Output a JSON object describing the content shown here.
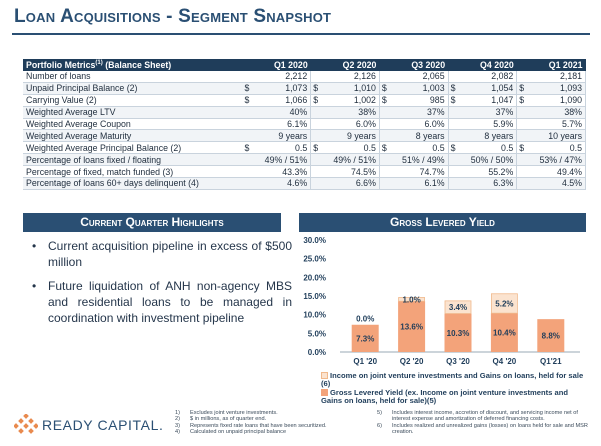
{
  "page": {
    "title": "Loan Acquisitions - Segment Snapshot"
  },
  "table": {
    "header": {
      "label": "Portfolio Metrics",
      "sup": "(1)",
      "suffix": " (Balance Sheet)",
      "quarters": [
        "Q1 2020",
        "Q2 2020",
        "Q3 2020",
        "Q4 2020",
        "Q1 2021"
      ]
    },
    "rows": [
      {
        "label": "Number of loans",
        "cur": [
          "",
          "",
          "",
          "",
          ""
        ],
        "values": [
          "2,212",
          "2,126",
          "2,065",
          "2,082",
          "2,181"
        ]
      },
      {
        "label": "Unpaid Principal Balance (2)",
        "cur": [
          "$",
          "$",
          "$",
          "$",
          "$"
        ],
        "values": [
          "1,073",
          "1,010",
          "1,003",
          "1,054",
          "1,093"
        ]
      },
      {
        "label": "Carrying Value (2)",
        "cur": [
          "$",
          "$",
          "$",
          "$",
          "$"
        ],
        "values": [
          "1,066",
          "1,002",
          "985",
          "1,047",
          "1,090"
        ]
      },
      {
        "label": "Weighted Average LTV",
        "cur": [
          "",
          "",
          "",
          "",
          ""
        ],
        "values": [
          "40%",
          "38%",
          "37%",
          "37%",
          "38%"
        ]
      },
      {
        "label": "Weighted Average Coupon",
        "cur": [
          "",
          "",
          "",
          "",
          ""
        ],
        "values": [
          "6.1%",
          "6.0%",
          "6.0%",
          "5.9%",
          "5.7%"
        ]
      },
      {
        "label": "Weighted Average Maturity",
        "cur": [
          "",
          "",
          "",
          "",
          ""
        ],
        "values": [
          "9 years",
          "9 years",
          "8 years",
          "8 years",
          "10 years"
        ]
      },
      {
        "label": "Weighted Average Principal Balance (2)",
        "cur": [
          "$",
          "$",
          "$",
          "$",
          "$"
        ],
        "values": [
          "0.5",
          "0.5",
          "0.5",
          "0.5",
          "0.5"
        ]
      },
      {
        "label": "Percentage of loans fixed / floating",
        "cur": [
          "",
          "",
          "",
          "",
          ""
        ],
        "values": [
          "49% / 51%",
          "49% / 51%",
          "51% / 49%",
          "50% / 50%",
          "53% / 47%"
        ]
      },
      {
        "label": "Percentage of fixed, match funded (3)",
        "cur": [
          "",
          "",
          "",
          "",
          ""
        ],
        "values": [
          "43.3%",
          "74.5%",
          "74.7%",
          "55.2%",
          "49.4%"
        ]
      },
      {
        "label": "Percentage of loans 60+ days delinquent (4)",
        "cur": [
          "",
          "",
          "",
          "",
          ""
        ],
        "values": [
          "4.6%",
          "6.6%",
          "6.1%",
          "6.3%",
          "4.5%"
        ]
      }
    ]
  },
  "highlights": {
    "heading": "Current Quarter Highlights",
    "bullets": [
      "Current acquisition pipeline in excess of $500 million",
      "Future liquidation of ANH non-agency MBS and residential loans to be managed in coordination with investment pipeline"
    ]
  },
  "yield": {
    "heading": "Gross Levered Yield"
  },
  "chart_data": {
    "type": "bar",
    "stacked": true,
    "categories": [
      "Q1 '20",
      "Q2 '20",
      "Q3 '20",
      "Q4 '20",
      "Q1'21"
    ],
    "series": [
      {
        "name": "Gross Levered Yield (ex. Income on joint venture investments and Gains on loans, held for sale)(5)",
        "values": [
          7.3,
          13.6,
          10.3,
          10.4,
          8.8
        ],
        "color": "#f3a37a"
      },
      {
        "name": "Income on joint venture investments and Gains on loans, held for sale (6)",
        "values": [
          0.0,
          1.0,
          3.4,
          5.2,
          0.0
        ],
        "color": "#fbe3cf"
      }
    ],
    "data_labels": {
      "bottom": [
        "7.3%",
        "13.6%",
        "10.3%",
        "10.4%",
        "8.8%"
      ],
      "top": [
        "0.0%",
        "1.0%",
        "3.4%",
        "5.2%",
        ""
      ]
    },
    "ylim": [
      0,
      30
    ],
    "yticks": [
      "0.0%",
      "5.0%",
      "10.0%",
      "15.0%",
      "20.0%",
      "25.0%",
      "30.0%"
    ],
    "legend_position": "bottom",
    "gridlines": false
  },
  "legend": {
    "item1": "Income on joint venture investments and Gains on loans, held for sale (6)",
    "item2": "Gross Levered Yield (ex. Income on joint venture investments and Gains on loans, held for sale)(5)"
  },
  "footnotes": {
    "left": [
      {
        "n": "1)",
        "t": "Excludes joint venture investments."
      },
      {
        "n": "2)",
        "t": "$ in millions, as of quarter end."
      },
      {
        "n": "3)",
        "t": "Represents fixed rate loans that have been securitized."
      },
      {
        "n": "4)",
        "t": "Calculated on unpaid principal balance"
      }
    ],
    "right": [
      {
        "n": "5)",
        "t": "Includes interest income, accretion of discount, and servicing income net of interest expense and amortization of deferred financing costs."
      },
      {
        "n": "6)",
        "t": "Includes realized and unrealized gains (losses) on loans held for sale and MSR creation."
      }
    ]
  },
  "logo": {
    "text": "READY CAPITAL."
  },
  "colors": {
    "navy": "#2a4f73",
    "header": "#1f3d5a",
    "bar_main": "#f3a37a",
    "bar_top": "#fbe3cf"
  }
}
